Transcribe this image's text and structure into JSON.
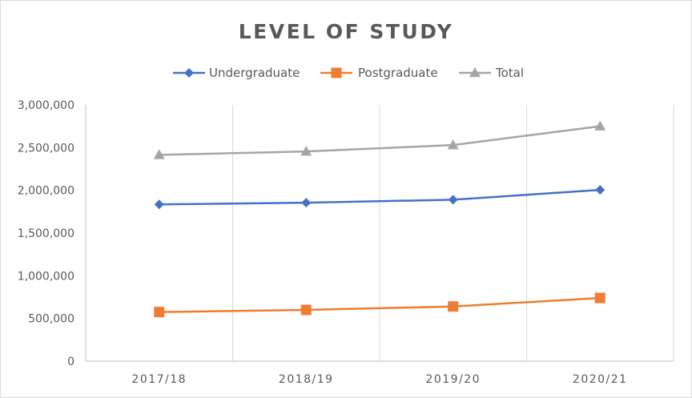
{
  "chart_data": {
    "type": "line",
    "title": "LEVEL OF STUDY",
    "xlabel": "",
    "ylabel": "",
    "categories": [
      "2017/18",
      "2018/19",
      "2019/20",
      "2020/21"
    ],
    "ylim": [
      0,
      3000000
    ],
    "yticks": [
      0,
      500000,
      1000000,
      1500000,
      2000000,
      2500000,
      3000000
    ],
    "ytick_labels": [
      "0",
      "500,000",
      "1,000,000",
      "1,500,000",
      "2,000,000",
      "2,500,000",
      "3,000,000"
    ],
    "grid": "vertical",
    "legend": "top",
    "series": [
      {
        "name": "Undergraduate",
        "values": [
          1835000,
          1855000,
          1890000,
          2005000
        ],
        "color": "#4472C4",
        "marker": "diamond"
      },
      {
        "name": "Postgraduate",
        "values": [
          575000,
          600000,
          640000,
          740000
        ],
        "color": "#ED7D31",
        "marker": "square"
      },
      {
        "name": "Total",
        "values": [
          2415000,
          2455000,
          2530000,
          2750000
        ],
        "color": "#A5A5A5",
        "marker": "triangle"
      }
    ]
  }
}
